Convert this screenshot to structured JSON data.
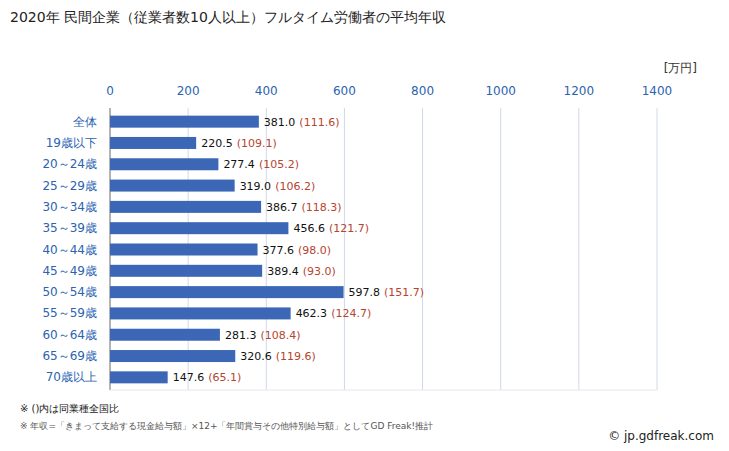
{
  "chart_data": {
    "type": "bar",
    "title": "2020年 民間企業（従業者数10人以上）フルタイム労働者の平均年収",
    "unit": "[万円]",
    "orientation": "horizontal",
    "categories": [
      "全体",
      "19歳以下",
      "20～24歳",
      "25～29歳",
      "30～34歳",
      "35～39歳",
      "40～44歳",
      "45～49歳",
      "50～54歳",
      "55～59歳",
      "60～64歳",
      "65～69歳",
      "70歳以上"
    ],
    "values": [
      381.0,
      220.5,
      277.4,
      319.0,
      386.7,
      456.6,
      377.6,
      389.4,
      597.8,
      462.3,
      281.3,
      320.6,
      147.6
    ],
    "value_labels": [
      "381.0",
      "220.5",
      "277.4",
      "319.0",
      "386.7",
      "456.6",
      "377.6",
      "389.4",
      "597.8",
      "462.3",
      "281.3",
      "320.6",
      "147.6"
    ],
    "ratio_labels": [
      "(111.6)",
      "(109.1)",
      "(105.2)",
      "(106.2)",
      "(118.3)",
      "(121.7)",
      "(98.0)",
      "(93.0)",
      "(151.7)",
      "(124.7)",
      "(108.4)",
      "(119.6)",
      "(65.1)"
    ],
    "color": "#3b67b6",
    "xlim": [
      0,
      1400
    ],
    "xticks": [
      0,
      200,
      400,
      600,
      800,
      1000,
      1200,
      1400
    ],
    "grid": true,
    "data_labels": true,
    "notes": [
      "※ ()内は同業種全国比",
      "※ 年収=「きまって支給する現金給与額」×12+「年間賞与その他特別給与額」としてGD Freak!推計"
    ],
    "source": "© jp.gdfreak.com"
  }
}
